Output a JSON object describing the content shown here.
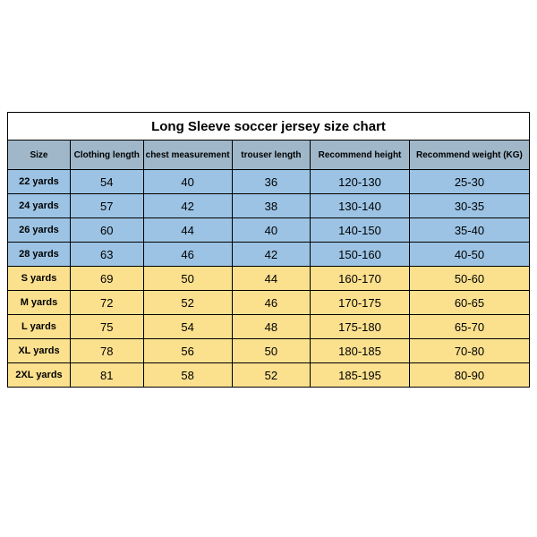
{
  "title": "Long Sleeve soccer jersey size chart",
  "columns": [
    "Size",
    "Clothing length",
    "chest measurement",
    "trouser length",
    "Recommend height",
    "Recommend weight (KG)"
  ],
  "header_bg": "#9fb7c9",
  "groups": [
    {
      "bg": "#9cc3e4",
      "rows": [
        [
          "22 yards",
          "54",
          "40",
          "36",
          "120-130",
          "25-30"
        ],
        [
          "24 yards",
          "57",
          "42",
          "38",
          "130-140",
          "30-35"
        ],
        [
          "26 yards",
          "60",
          "44",
          "40",
          "140-150",
          "35-40"
        ],
        [
          "28 yards",
          "63",
          "46",
          "42",
          "150-160",
          "40-50"
        ]
      ]
    },
    {
      "bg": "#fbe08e",
      "rows": [
        [
          "S yards",
          "69",
          "50",
          "44",
          "160-170",
          "50-60"
        ],
        [
          "M yards",
          "72",
          "52",
          "46",
          "170-175",
          "60-65"
        ],
        [
          "L yards",
          "75",
          "54",
          "48",
          "175-180",
          "65-70"
        ],
        [
          "XL yards",
          "78",
          "56",
          "50",
          "180-185",
          "70-80"
        ],
        [
          "2XL yards",
          "81",
          "58",
          "52",
          "185-195",
          "80-90"
        ]
      ]
    }
  ],
  "border_color": "#000000"
}
